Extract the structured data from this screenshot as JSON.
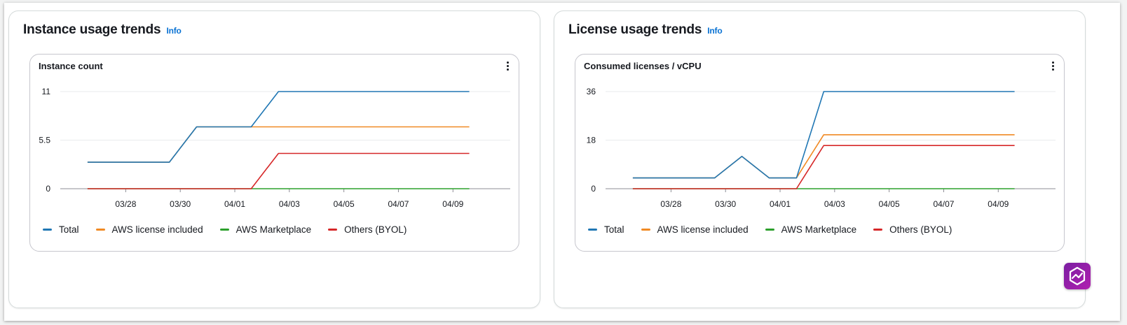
{
  "panels": [
    {
      "title": "Instance usage trends",
      "info": "Info",
      "chart_title": "Instance count"
    },
    {
      "title": "License usage trends",
      "info": "Info",
      "chart_title": "Consumed licenses / vCPU"
    }
  ],
  "legend": [
    {
      "label": "Total",
      "color": "#2077b4"
    },
    {
      "label": "AWS license included",
      "color": "#f08a24"
    },
    {
      "label": "AWS Marketplace",
      "color": "#2ca02c"
    },
    {
      "label": "Others (BYOL)",
      "color": "#d62728"
    }
  ],
  "colors": {
    "accent_link": "#0972d3",
    "assistant_button": "#8e24aa"
  },
  "icons": {
    "menu": "more-vertical-icon",
    "assistant": "assistant-icon"
  },
  "chart_data": [
    {
      "type": "line",
      "title": "Instance count",
      "x_tick_labels": [
        "03/28",
        "03/30",
        "04/01",
        "04/03",
        "04/05",
        "04/07",
        "04/09"
      ],
      "x_domain": [
        -2.4,
        14.1
      ],
      "x_ticks": [
        0,
        2,
        4,
        6,
        8,
        10,
        12
      ],
      "y_ticks": [
        0,
        5.5,
        11
      ],
      "y_tick_labels": [
        "0",
        "5.5",
        "11"
      ],
      "ylim": [
        0,
        11
      ],
      "grid": true,
      "legend_position": "bottom-left",
      "series": [
        {
          "name": "Total",
          "color": "#2077b4",
          "points": [
            [
              -1.4,
              3
            ],
            [
              1.6,
              3
            ],
            [
              2.6,
              7
            ],
            [
              4.6,
              7
            ],
            [
              5.6,
              11
            ],
            [
              12.6,
              11
            ]
          ]
        },
        {
          "name": "AWS license included",
          "color": "#f08a24",
          "points": [
            [
              -1.4,
              3
            ],
            [
              1.6,
              3
            ],
            [
              2.6,
              7
            ],
            [
              12.6,
              7
            ]
          ]
        },
        {
          "name": "AWS Marketplace",
          "color": "#2ca02c",
          "points": [
            [
              -1.4,
              0
            ],
            [
              12.6,
              0
            ]
          ]
        },
        {
          "name": "Others (BYOL)",
          "color": "#d62728",
          "points": [
            [
              -1.4,
              0
            ],
            [
              4.6,
              0
            ],
            [
              5.6,
              4
            ],
            [
              12.6,
              4
            ]
          ]
        }
      ]
    },
    {
      "type": "line",
      "title": "Consumed licenses / vCPU",
      "x_tick_labels": [
        "03/28",
        "03/30",
        "04/01",
        "04/03",
        "04/05",
        "04/07",
        "04/09"
      ],
      "x_domain": [
        -2.4,
        14.1
      ],
      "x_ticks": [
        0,
        2,
        4,
        6,
        8,
        10,
        12
      ],
      "y_ticks": [
        0,
        18,
        36
      ],
      "y_tick_labels": [
        "0",
        "18",
        "36"
      ],
      "ylim": [
        0,
        36
      ],
      "grid": true,
      "legend_position": "bottom-left",
      "series": [
        {
          "name": "Total",
          "color": "#2077b4",
          "points": [
            [
              -1.4,
              4
            ],
            [
              1.6,
              4
            ],
            [
              2.6,
              12
            ],
            [
              3.6,
              4
            ],
            [
              4.6,
              4
            ],
            [
              5.6,
              36
            ],
            [
              12.6,
              36
            ]
          ]
        },
        {
          "name": "AWS license included",
          "color": "#f08a24",
          "points": [
            [
              -1.4,
              4
            ],
            [
              1.6,
              4
            ],
            [
              2.6,
              12
            ],
            [
              3.6,
              4
            ],
            [
              4.6,
              4
            ],
            [
              5.6,
              20
            ],
            [
              12.6,
              20
            ]
          ]
        },
        {
          "name": "AWS Marketplace",
          "color": "#2ca02c",
          "points": [
            [
              -1.4,
              0
            ],
            [
              12.6,
              0
            ]
          ]
        },
        {
          "name": "Others (BYOL)",
          "color": "#d62728",
          "points": [
            [
              -1.4,
              0
            ],
            [
              4.6,
              0
            ],
            [
              5.6,
              16
            ],
            [
              12.6,
              16
            ]
          ]
        }
      ]
    }
  ]
}
